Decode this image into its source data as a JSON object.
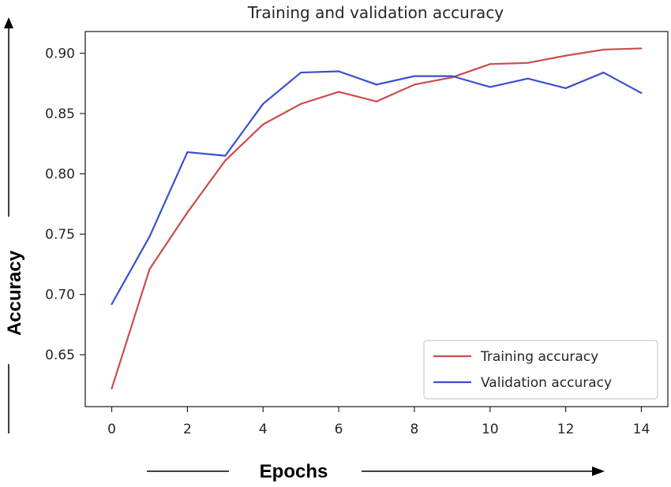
{
  "chart_data": {
    "type": "line",
    "title": "Training and validation accuracy",
    "xlabel": "Epochs",
    "ylabel": "Accuracy",
    "x": [
      0,
      1,
      2,
      3,
      4,
      5,
      6,
      7,
      8,
      9,
      10,
      11,
      12,
      13,
      14
    ],
    "series": [
      {
        "name": "Training accuracy",
        "color": "#cc4c4c",
        "values": [
          0.622,
          0.721,
          0.768,
          0.811,
          0.841,
          0.858,
          0.868,
          0.86,
          0.874,
          0.88,
          0.891,
          0.892,
          0.898,
          0.903,
          0.904
        ]
      },
      {
        "name": "Validation accuracy",
        "color": "#3a4fd0",
        "values": [
          0.692,
          0.748,
          0.818,
          0.815,
          0.858,
          0.884,
          0.885,
          0.874,
          0.881,
          0.881,
          0.872,
          0.879,
          0.871,
          0.884,
          0.867
        ]
      }
    ],
    "xticks": [
      0,
      2,
      4,
      6,
      8,
      10,
      12,
      14
    ],
    "yticks": [
      0.65,
      0.7,
      0.75,
      0.8,
      0.85,
      0.9
    ],
    "ytick_labels": [
      "0.65",
      "0.70",
      "0.75",
      "0.80",
      "0.85",
      "0.90"
    ],
    "xlim": [
      -0.7,
      14.7
    ],
    "ylim": [
      0.607,
      0.918
    ],
    "grid": false,
    "legend_position": "lower-right"
  }
}
